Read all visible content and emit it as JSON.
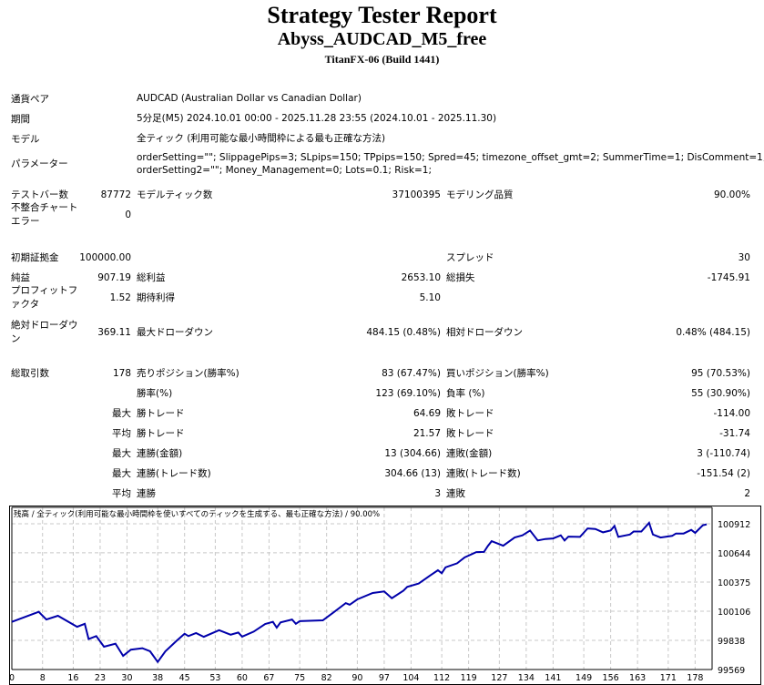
{
  "header": {
    "title": "Strategy Tester Report",
    "expert": "Abyss_AUDCAD_M5_free",
    "server": "TitanFX-06 (Build 1441)"
  },
  "info": [
    {
      "label": "通貨ペア",
      "value": "AUDCAD (Australian Dollar vs Canadian Dollar)"
    },
    {
      "label": "期間",
      "value": "5分足(M5) 2024.10.01 00:00 - 2025.11.28 23:55 (2024.10.01 - 2025.11.30)"
    },
    {
      "label": "モデル",
      "value": "全ティック (利用可能な最小時間枠による最も正確な方法)"
    },
    {
      "label": "パラメーター",
      "value": "orderSetting=\"\"; SlippagePips=3; SLpips=150; TPpips=150; Spred=45; timezone_offset_gmt=2; SummerTime=1; DisComment=1;",
      "value2": "orderSetting2=\"\"; Money_Management=0; Lots=0.1; Risk=1;"
    }
  ],
  "stats": [
    {
      "l1": "テストバー数",
      "v1": "87772",
      "l2": "モデルティック数",
      "v2": "37100395",
      "l3": "モデリング品質",
      "v3": "90.00%"
    },
    {
      "l1": "不整合チャート\nエラー",
      "v1": "0",
      "l2": "",
      "v2": "",
      "l3": "",
      "v3": ""
    },
    {
      "l1": "初期証拠金",
      "v1": "100000.00",
      "l2": "",
      "v2": "",
      "l3": "スプレッド",
      "v3": "30"
    },
    {
      "l1": "純益",
      "v1": "907.19",
      "l2": "総利益",
      "v2": "2653.10",
      "l3": "総損失",
      "v3": "-1745.91"
    },
    {
      "l1": "プロフィットフ\nァクタ",
      "v1": "1.52",
      "l2": "期待利得",
      "v2": "5.10",
      "l3": "",
      "v3": ""
    },
    {
      "l1": "絶対ドローダウ\nン",
      "v1": "369.11",
      "l2": "最大ドローダウン",
      "v2": "484.15 (0.48%)",
      "l3": "相対ドローダウン",
      "v3": "0.48% (484.15)"
    },
    {
      "l1": "総取引数",
      "v1": "178",
      "l2": "売りポジション(勝率%)",
      "v2": "83 (67.47%)",
      "l3": "買いポジション(勝率%)",
      "v3": "95 (70.53%)"
    },
    {
      "l1": "",
      "v1": "",
      "l2": "勝率(%)",
      "v2": "123 (69.10%)",
      "l3": "負率 (%)",
      "v3": "55 (30.90%)"
    },
    {
      "l1": "",
      "v1": "最大",
      "l2": "勝トレード",
      "v2": "64.69",
      "l3": "敗トレード",
      "v3": "-114.00"
    },
    {
      "l1": "",
      "v1": "平均",
      "l2": "勝トレード",
      "v2": "21.57",
      "l3": "敗トレード",
      "v3": "-31.74"
    },
    {
      "l1": "",
      "v1": "最大",
      "l2": "連勝(金額)",
      "v2": "13 (304.66)",
      "l3": "連敗(金額)",
      "v3": "3 (-110.74)"
    },
    {
      "l1": "",
      "v1": "最大",
      "l2": "連勝(トレード数)",
      "v2": "304.66 (13)",
      "l3": "連敗(トレード数)",
      "v3": "-151.54 (2)"
    },
    {
      "l1": "",
      "v1": "平均",
      "l2": "連勝",
      "v2": "3",
      "l3": "連敗",
      "v3": "2"
    }
  ],
  "chart_data": {
    "type": "line",
    "title": "残高 / 全ティック(利用可能な最小時間枠を使いすべてのティックを生成する、最も正確な方法) / 90.00%",
    "xticks": [
      "0",
      "8",
      "16",
      "23",
      "30",
      "38",
      "45",
      "53",
      "60",
      "67",
      "75",
      "82",
      "90",
      "97",
      "104",
      "112",
      "119",
      "127",
      "134",
      "141",
      "149",
      "156",
      "163",
      "171",
      "178"
    ],
    "yticks": [
      "100912",
      "100644",
      "100375",
      "100106",
      "99838",
      "99569"
    ],
    "ylim": [
      99569,
      101050
    ],
    "xlim": [
      0,
      181
    ],
    "line_color": "#0000aa",
    "x": [
      0,
      7,
      9,
      12,
      17,
      19,
      20,
      22,
      24,
      27,
      29,
      31,
      34,
      36,
      38,
      40,
      43,
      45,
      46,
      48,
      50,
      54,
      57,
      59,
      60,
      63,
      66,
      68,
      69,
      70,
      73,
      74,
      75,
      81,
      84,
      87,
      88,
      90,
      94,
      97,
      99,
      102,
      103,
      106,
      109,
      111,
      112,
      113,
      116,
      118,
      121,
      123,
      124,
      125,
      128,
      131,
      133,
      135,
      137,
      139,
      141,
      143,
      144,
      145,
      148,
      150,
      152,
      154,
      156,
      157,
      158,
      161,
      162,
      164,
      166,
      167,
      169,
      172,
      173,
      175,
      177,
      178,
      180,
      181
    ],
    "y": [
      100008,
      100100,
      100030,
      100064,
      99963,
      99990,
      99850,
      99877,
      99779,
      99807,
      99695,
      99752,
      99765,
      99737,
      99639,
      99737,
      99837,
      99899,
      99877,
      99905,
      99870,
      99932,
      99890,
      99910,
      99872,
      99918,
      99989,
      100008,
      99955,
      100003,
      100030,
      99990,
      100015,
      100022,
      100100,
      100181,
      100166,
      100215,
      100274,
      100288,
      100226,
      100295,
      100330,
      100361,
      100436,
      100484,
      100456,
      100511,
      100548,
      100603,
      100651,
      100653,
      100706,
      100752,
      100710,
      100785,
      100805,
      100850,
      100758,
      100772,
      100777,
      100805,
      100758,
      100794,
      100791,
      100869,
      100864,
      100833,
      100850,
      100892,
      100791,
      100813,
      100841,
      100841,
      100920,
      100813,
      100785,
      100800,
      100822,
      100822,
      100856,
      100828,
      100898,
      100907
    ]
  }
}
